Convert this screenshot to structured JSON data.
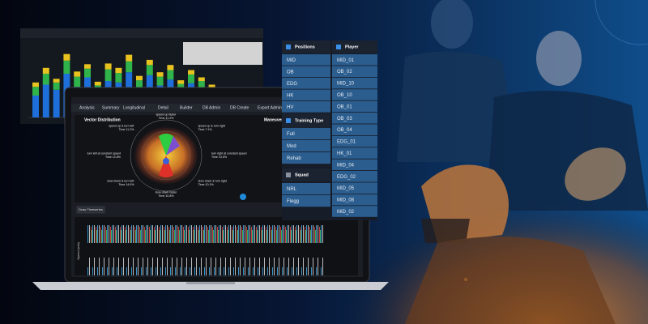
{
  "back_chart": {
    "series": [
      {
        "color": "#1e6fd9",
        "values": [
          30,
          45,
          38,
          60,
          42,
          55,
          35,
          50,
          48,
          62,
          40,
          58,
          44,
          52,
          36,
          47,
          41,
          33
        ]
      },
      {
        "color": "#2fb34a",
        "values": [
          12,
          15,
          10,
          18,
          14,
          12,
          9,
          16,
          13,
          15,
          11,
          14,
          12,
          13,
          10,
          12,
          9,
          8
        ]
      },
      {
        "color": "#e8c21e",
        "values": [
          6,
          8,
          5,
          9,
          7,
          6,
          5,
          8,
          7,
          9,
          6,
          7,
          6,
          7,
          5,
          6,
          5,
          4
        ]
      }
    ],
    "ylim": [
      0,
      100
    ]
  },
  "tabs": [
    "Analysis",
    "Summary",
    "Longitudinal",
    "Detail",
    "Builder",
    "DB Admin",
    "DB Create",
    "Export Admin"
  ],
  "vector_panel": {
    "title": "Vector Distribution",
    "side_title": "Maneuver",
    "polar_labels": [
      {
        "label": "speed up faster",
        "time": "Time 11.2%"
      },
      {
        "label": "speed up & turn right",
        "time": "Time 7.1%"
      },
      {
        "label": "turn right at constant speed",
        "time": "Time 13.5%"
      },
      {
        "label": "slow down & turn right",
        "time": "Time 10.1%"
      },
      {
        "label": "slow down faster",
        "time": "Time 10.8%"
      },
      {
        "label": "slow down & turn left",
        "time": "Time 14.0%"
      },
      {
        "label": "turn left at constant speed",
        "time": "Time 12.8%"
      },
      {
        "label": "speed up & turn left",
        "time": "Time 11.2%"
      }
    ]
  },
  "button": "Draw Timeseries",
  "timeseries": {
    "y_label": "Speed (m/s)"
  },
  "filters": {
    "positions": {
      "title": "Positions",
      "items": [
        "MID",
        "OB",
        "EDG",
        "HK",
        "HV"
      ]
    },
    "training_type": {
      "title": "Training Type",
      "items": [
        "Full",
        "Mod",
        "Rehab"
      ]
    },
    "squad": {
      "title": "Squad",
      "items": [
        "NRL",
        "Flegg"
      ]
    },
    "player": {
      "title": "Player",
      "items": [
        "MID_01",
        "OB_02",
        "MID_10",
        "OB_10",
        "OB_01",
        "OB_03",
        "OB_04",
        "EDG_01",
        "HK_01",
        "MID_04",
        "EDG_02",
        "MID_05",
        "MID_08",
        "MID_02"
      ]
    }
  }
}
